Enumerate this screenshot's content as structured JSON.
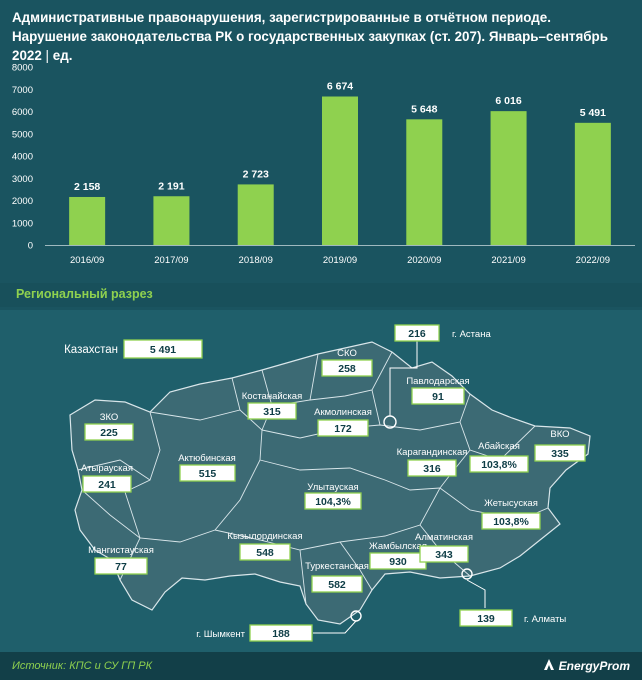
{
  "title": "Административные правонарушения, зарегистрированные в отчётном периоде. Нарушение законодательства РК о государственных закупках (ст. 207). Январь–сентябрь 2022",
  "unit": "ед.",
  "chart_data": {
    "type": "bar",
    "categories": [
      "2016/09",
      "2017/09",
      "2018/09",
      "2019/09",
      "2020/09",
      "2021/09",
      "2022/09"
    ],
    "values": [
      2158,
      2191,
      2723,
      6674,
      5648,
      6016,
      5491
    ],
    "value_labels": [
      "2 158",
      "2 191",
      "2 723",
      "6 674",
      "5 648",
      "6 016",
      "5 491"
    ],
    "yticks": [
      0,
      1000,
      2000,
      3000,
      4000,
      5000,
      6000,
      7000,
      8000
    ],
    "ylim": [
      0,
      8000
    ],
    "bar_color": "#8fd14f",
    "grid": false
  },
  "regional": {
    "title": "Региональный разрез",
    "total": {
      "label": "Казахстан",
      "value": "5 491"
    },
    "regions": [
      {
        "key": "astana",
        "label": "г. Астана",
        "value": "216"
      },
      {
        "key": "sko",
        "label": "СКО",
        "value": "258"
      },
      {
        "key": "pavlodar",
        "label": "Павлодарская",
        "value": "91"
      },
      {
        "key": "kostanay",
        "label": "Костанайская",
        "value": "315"
      },
      {
        "key": "akmola",
        "label": "Акмолинская",
        "value": "172"
      },
      {
        "key": "zko",
        "label": "ЗКО",
        "value": "225"
      },
      {
        "key": "vko",
        "label": "ВКО",
        "value": "335"
      },
      {
        "key": "abay",
        "label": "Абайская",
        "value": "103,8%"
      },
      {
        "key": "atyrau",
        "label": "Атырауская",
        "value": "241"
      },
      {
        "key": "aktobe",
        "label": "Актюбинская",
        "value": "515"
      },
      {
        "key": "karaganda",
        "label": "Карагандинская",
        "value": "316"
      },
      {
        "key": "ulytau",
        "label": "Улытауская",
        "value": "104,3%"
      },
      {
        "key": "zhetysu",
        "label": "Жетысуская",
        "value": "103,8%"
      },
      {
        "key": "mangistau",
        "label": "Мангистауская",
        "value": "77"
      },
      {
        "key": "kyzylorda",
        "label": "Кызылординская",
        "value": "548"
      },
      {
        "key": "zhambyl",
        "label": "Жамбылская",
        "value": "930"
      },
      {
        "key": "almaty_obl",
        "label": "Алматинская",
        "value": "343"
      },
      {
        "key": "turkestan",
        "label": "Туркестанская",
        "value": "582"
      },
      {
        "key": "shymkent",
        "label": "г. Шымкент",
        "value": "188"
      },
      {
        "key": "almaty",
        "label": "г. Алматы",
        "value": "139"
      }
    ]
  },
  "footer": {
    "source": "Источник: КПС и СУ ГП РК",
    "brand": "EnergyProm"
  },
  "colors": {
    "background": "#1a5460",
    "accent": "#8fd14f",
    "map_fill": "#3c6a74"
  }
}
